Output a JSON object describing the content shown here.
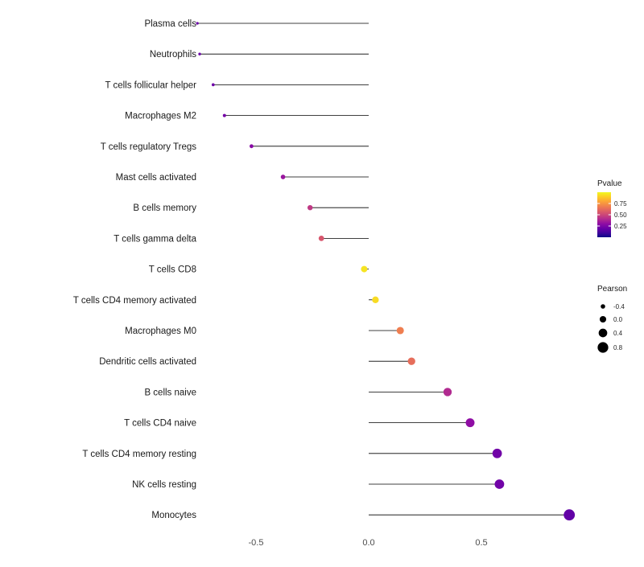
{
  "chart_data": {
    "type": "lollipop",
    "orientation": "horizontal",
    "title": "",
    "xlabel": "",
    "ylabel": "",
    "grid": false,
    "baseline": 0.0,
    "xlim": [
      -0.85,
      0.95
    ],
    "x_ticks": [
      -0.5,
      0.0,
      0.5
    ],
    "x_tick_labels": [
      "-0.5",
      "0.0",
      "0.5"
    ],
    "points": [
      {
        "label": "Plasma cells",
        "pearson": -0.76,
        "pvalue": 0.2
      },
      {
        "label": "Neutrophils",
        "pearson": -0.75,
        "pvalue": 0.2
      },
      {
        "label": "T cells follicular helper",
        "pearson": -0.69,
        "pvalue": 0.21
      },
      {
        "label": "Macrophages M2",
        "pearson": -0.64,
        "pvalue": 0.23
      },
      {
        "label": "T cells regulatory  Tregs",
        "pearson": -0.52,
        "pvalue": 0.28
      },
      {
        "label": "Mast cells activated",
        "pearson": -0.38,
        "pvalue": 0.33
      },
      {
        "label": "B cells memory",
        "pearson": -0.26,
        "pvalue": 0.45
      },
      {
        "label": "T cells gamma delta",
        "pearson": -0.21,
        "pvalue": 0.55
      },
      {
        "label": "T cells CD8",
        "pearson": -0.02,
        "pvalue": 0.95
      },
      {
        "label": "T cells CD4 memory activated",
        "pearson": 0.03,
        "pvalue": 0.93
      },
      {
        "label": "Macrophages M0",
        "pearson": 0.14,
        "pvalue": 0.68
      },
      {
        "label": "Dendritic cells activated",
        "pearson": 0.19,
        "pvalue": 0.63
      },
      {
        "label": "B cells naive",
        "pearson": 0.35,
        "pvalue": 0.4
      },
      {
        "label": "T cells CD4 naive",
        "pearson": 0.45,
        "pvalue": 0.3
      },
      {
        "label": "T cells CD4 memory resting",
        "pearson": 0.57,
        "pvalue": 0.22
      },
      {
        "label": "NK cells resting",
        "pearson": 0.58,
        "pvalue": 0.22
      },
      {
        "label": "Monocytes",
        "pearson": 0.89,
        "pvalue": 0.18
      }
    ],
    "legends": {
      "color": {
        "title": "Pvalue",
        "ticks": [
          0.75,
          0.5,
          0.25
        ],
        "tick_labels": [
          "0.75",
          "0.50",
          "0.25"
        ]
      },
      "size": {
        "title": "Pearson",
        "ticks": [
          -0.4,
          0.0,
          0.4,
          0.8
        ],
        "tick_labels": [
          "-0.4",
          "0.0",
          "0.4",
          "0.8"
        ]
      }
    },
    "colors": {
      "plasma_stops": [
        "#0d0887",
        "#41049d",
        "#6a00a8",
        "#8f0da4",
        "#b12a90",
        "#cc4778",
        "#e16462",
        "#f2844b",
        "#fca636",
        "#fcce25",
        "#f0f921"
      ],
      "stem": "#000000",
      "axis_text": "#4d4d4d",
      "label_text": "#1a1a1a",
      "legend_text": "#262626",
      "background": "#ffffff"
    }
  }
}
